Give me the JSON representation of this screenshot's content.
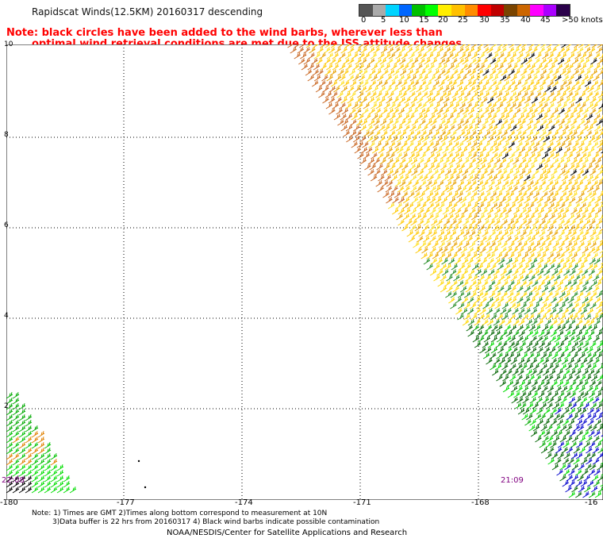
{
  "title": "Rapidscat Winds(12.5KM) 20160317 descending",
  "note": {
    "line1": "Note: black circles have been added to the wind barbs, wherever less than",
    "line2": "optimal wind retrieval conditions are met due to the ISS attitude changes."
  },
  "legend": {
    "colors": [
      "#555555",
      "#aaaaaa",
      "#00d4ff",
      "#0066ff",
      "#00c000",
      "#00ff00",
      "#ffee00",
      "#ffc000",
      "#ff8c00",
      "#ff0000",
      "#c00000",
      "#7a4400",
      "#cc6600",
      "#ff00ff",
      "#aa00ff",
      "#2a004a"
    ],
    "labels": [
      "0",
      "5",
      "10",
      "15",
      "20",
      "25",
      "30",
      "35",
      "40",
      "45",
      ">50 knots"
    ]
  },
  "axes": {
    "y_labels": [
      "10",
      "8",
      "6",
      "4",
      "2"
    ],
    "x_labels": [
      "-180",
      "-177",
      "-174",
      "-171",
      "-168",
      "-16"
    ]
  },
  "times": [
    "22:08",
    "21:09"
  ],
  "bottom_note": {
    "line1": "Note: 1) Times are GMT 2)Times along bottom correspond to measurement at 10N",
    "line2": "3)Data buffer is 22 hrs from 20160317 4) Black wind barbs indicate possible contamination"
  },
  "credit": "NOAA/NESDIS/Center for Satellite Applications and Research",
  "colors": {
    "note": "#ff0000",
    "time_label": "#800080",
    "grid": "#000000"
  }
}
